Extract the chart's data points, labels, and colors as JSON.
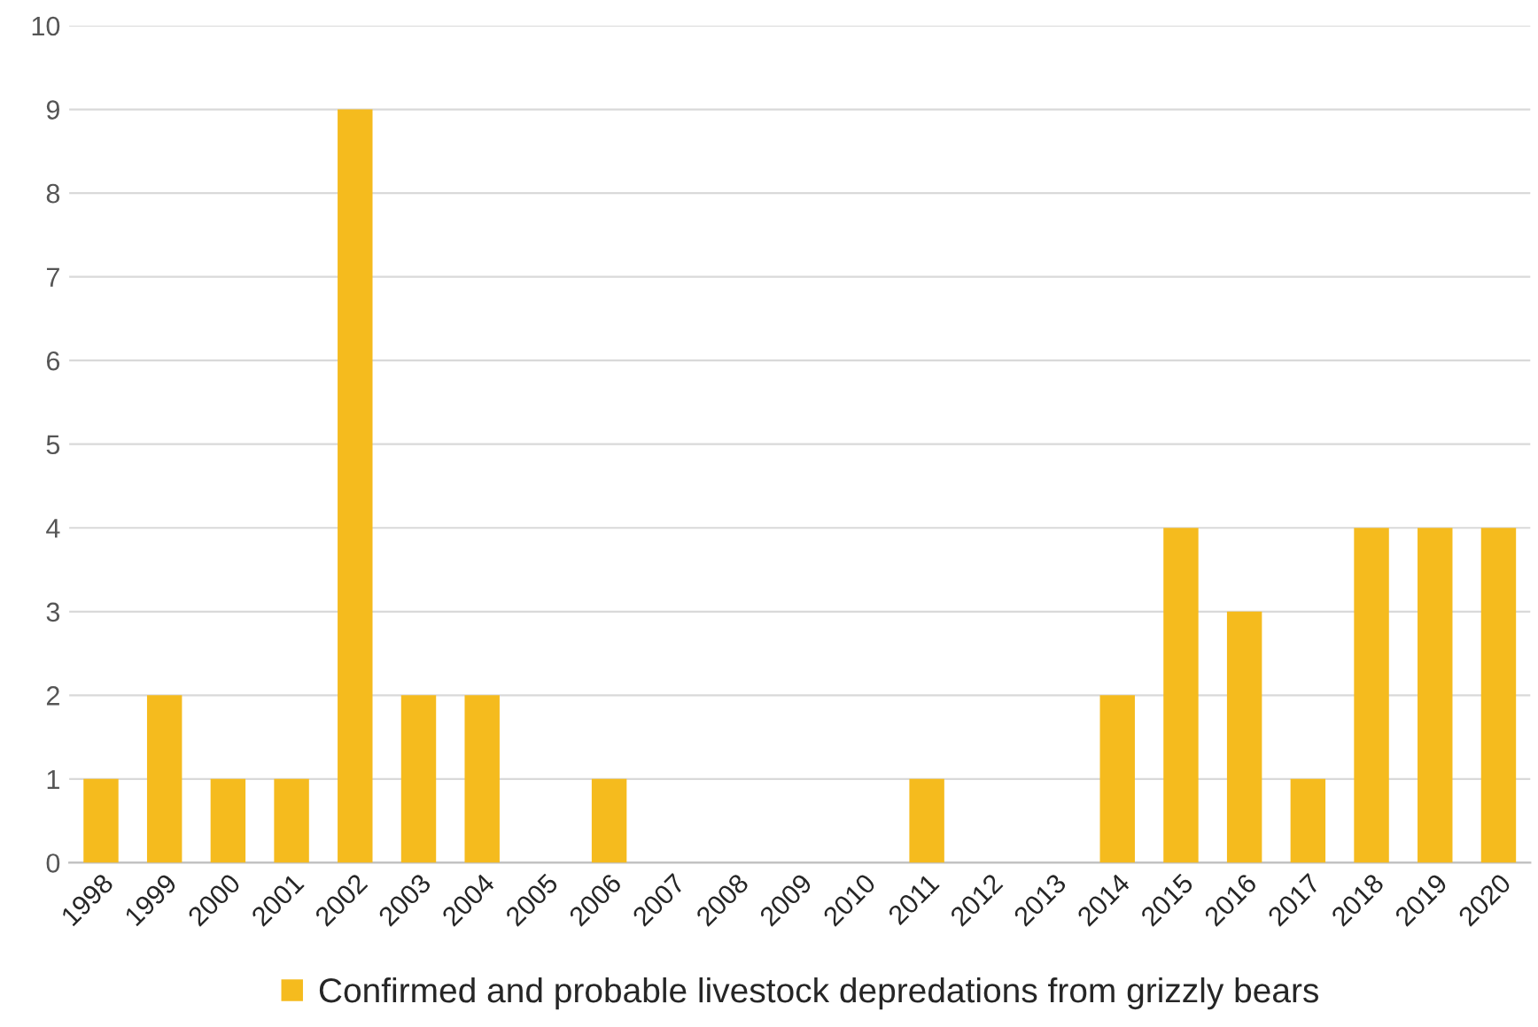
{
  "chart_data": {
    "type": "bar",
    "categories": [
      "1998",
      "1999",
      "2000",
      "2001",
      "2002",
      "2003",
      "2004",
      "2005",
      "2006",
      "2007",
      "2008",
      "2009",
      "2010",
      "2011",
      "2012",
      "2013",
      "2014",
      "2015",
      "2016",
      "2017",
      "2018",
      "2019",
      "2020"
    ],
    "series": [
      {
        "name": "Confirmed and probable livestock depredations from grizzly bears",
        "color": "#f5bb1e",
        "values": [
          1,
          2,
          1,
          1,
          9,
          2,
          2,
          0,
          1,
          0,
          0,
          0,
          0,
          1,
          0,
          0,
          2,
          4,
          3,
          1,
          4,
          4,
          4
        ]
      }
    ],
    "ylim": [
      0,
      10
    ],
    "yticks": [
      0,
      1,
      2,
      3,
      4,
      5,
      6,
      7,
      8,
      9,
      10
    ],
    "grid": "y",
    "legend": "bottom"
  }
}
